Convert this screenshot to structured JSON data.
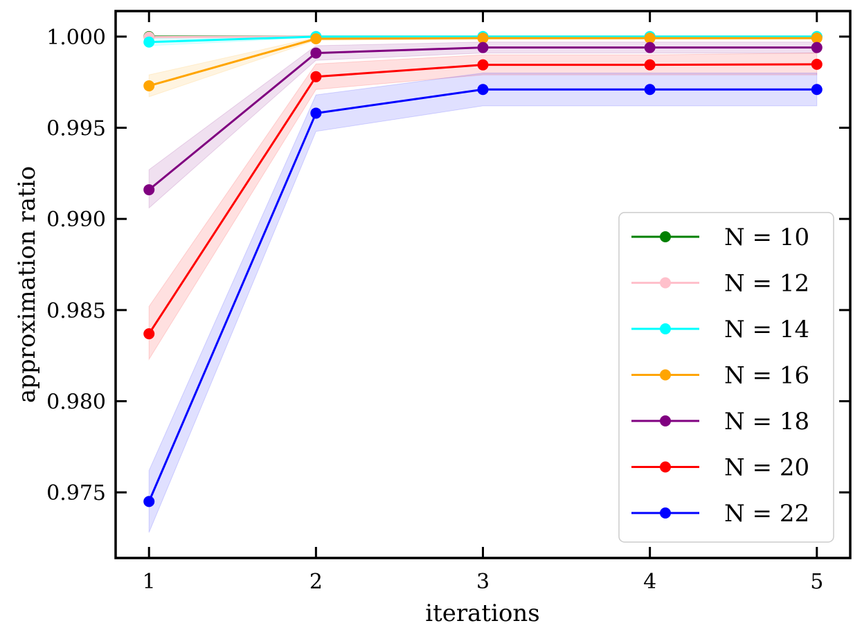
{
  "chart_data": {
    "type": "line",
    "title": "",
    "xlabel": "iterations",
    "ylabel": "approximation ratio",
    "x": [
      1,
      2,
      3,
      4,
      5
    ],
    "xticks": [
      "1",
      "2",
      "3",
      "4",
      "5"
    ],
    "yticks": [
      "0.975",
      "0.980",
      "0.985",
      "0.990",
      "0.995",
      "1.000"
    ],
    "xlim": [
      0.8,
      5.2
    ],
    "ylim": [
      0.9714,
      1.0014
    ],
    "grid": false,
    "legend_position": "bottom-right",
    "series": [
      {
        "name": "N = 10",
        "color": "#008000",
        "values": [
          1.0,
          1.0,
          1.0,
          1.0,
          1.0
        ],
        "lower": [
          0.99995,
          0.99995,
          0.99995,
          0.99995,
          0.99995
        ],
        "upper": [
          1.0,
          1.0,
          1.0,
          1.0,
          1.0
        ]
      },
      {
        "name": "N = 12",
        "color": "#ffc0cb",
        "values": [
          0.99997,
          1.0,
          1.0,
          1.0,
          1.0
        ],
        "lower": [
          0.9999,
          0.99995,
          0.99995,
          0.99995,
          0.99995
        ],
        "upper": [
          1.0,
          1.0,
          1.0,
          1.0,
          1.0
        ]
      },
      {
        "name": "N = 14",
        "color": "#00ffff",
        "values": [
          0.9997,
          1.0,
          1.0,
          1.0,
          1.0
        ],
        "lower": [
          0.9995,
          0.99995,
          0.99995,
          0.99995,
          0.99995
        ],
        "upper": [
          0.9999,
          1.0,
          1.0,
          1.0,
          1.0
        ]
      },
      {
        "name": "N = 16",
        "color": "#ffa500",
        "values": [
          0.9973,
          0.99988,
          0.99992,
          0.99992,
          0.99992
        ],
        "lower": [
          0.9967,
          0.9998,
          0.99985,
          0.99985,
          0.99985
        ],
        "upper": [
          0.9979,
          0.99995,
          0.99998,
          0.99998,
          0.99998
        ]
      },
      {
        "name": "N = 18",
        "color": "#800080",
        "values": [
          0.9916,
          0.9991,
          0.9994,
          0.9994,
          0.9994
        ],
        "lower": [
          0.9906,
          0.9987,
          0.9991,
          0.9991,
          0.9991
        ],
        "upper": [
          0.9927,
          0.9995,
          0.9997,
          0.9997,
          0.9997
        ]
      },
      {
        "name": "N = 20",
        "color": "#ff0000",
        "values": [
          0.9837,
          0.9978,
          0.99845,
          0.99845,
          0.99848
        ],
        "lower": [
          0.9823,
          0.9971,
          0.9979,
          0.9979,
          0.9979
        ],
        "upper": [
          0.9852,
          0.9985,
          0.999,
          0.999,
          0.9991
        ]
      },
      {
        "name": "N = 22",
        "color": "#0000ff",
        "values": [
          0.9745,
          0.9958,
          0.9971,
          0.9971,
          0.9971
        ],
        "lower": [
          0.9728,
          0.9948,
          0.9962,
          0.9962,
          0.9962
        ],
        "upper": [
          0.9762,
          0.9968,
          0.998,
          0.998,
          0.998
        ]
      }
    ]
  }
}
